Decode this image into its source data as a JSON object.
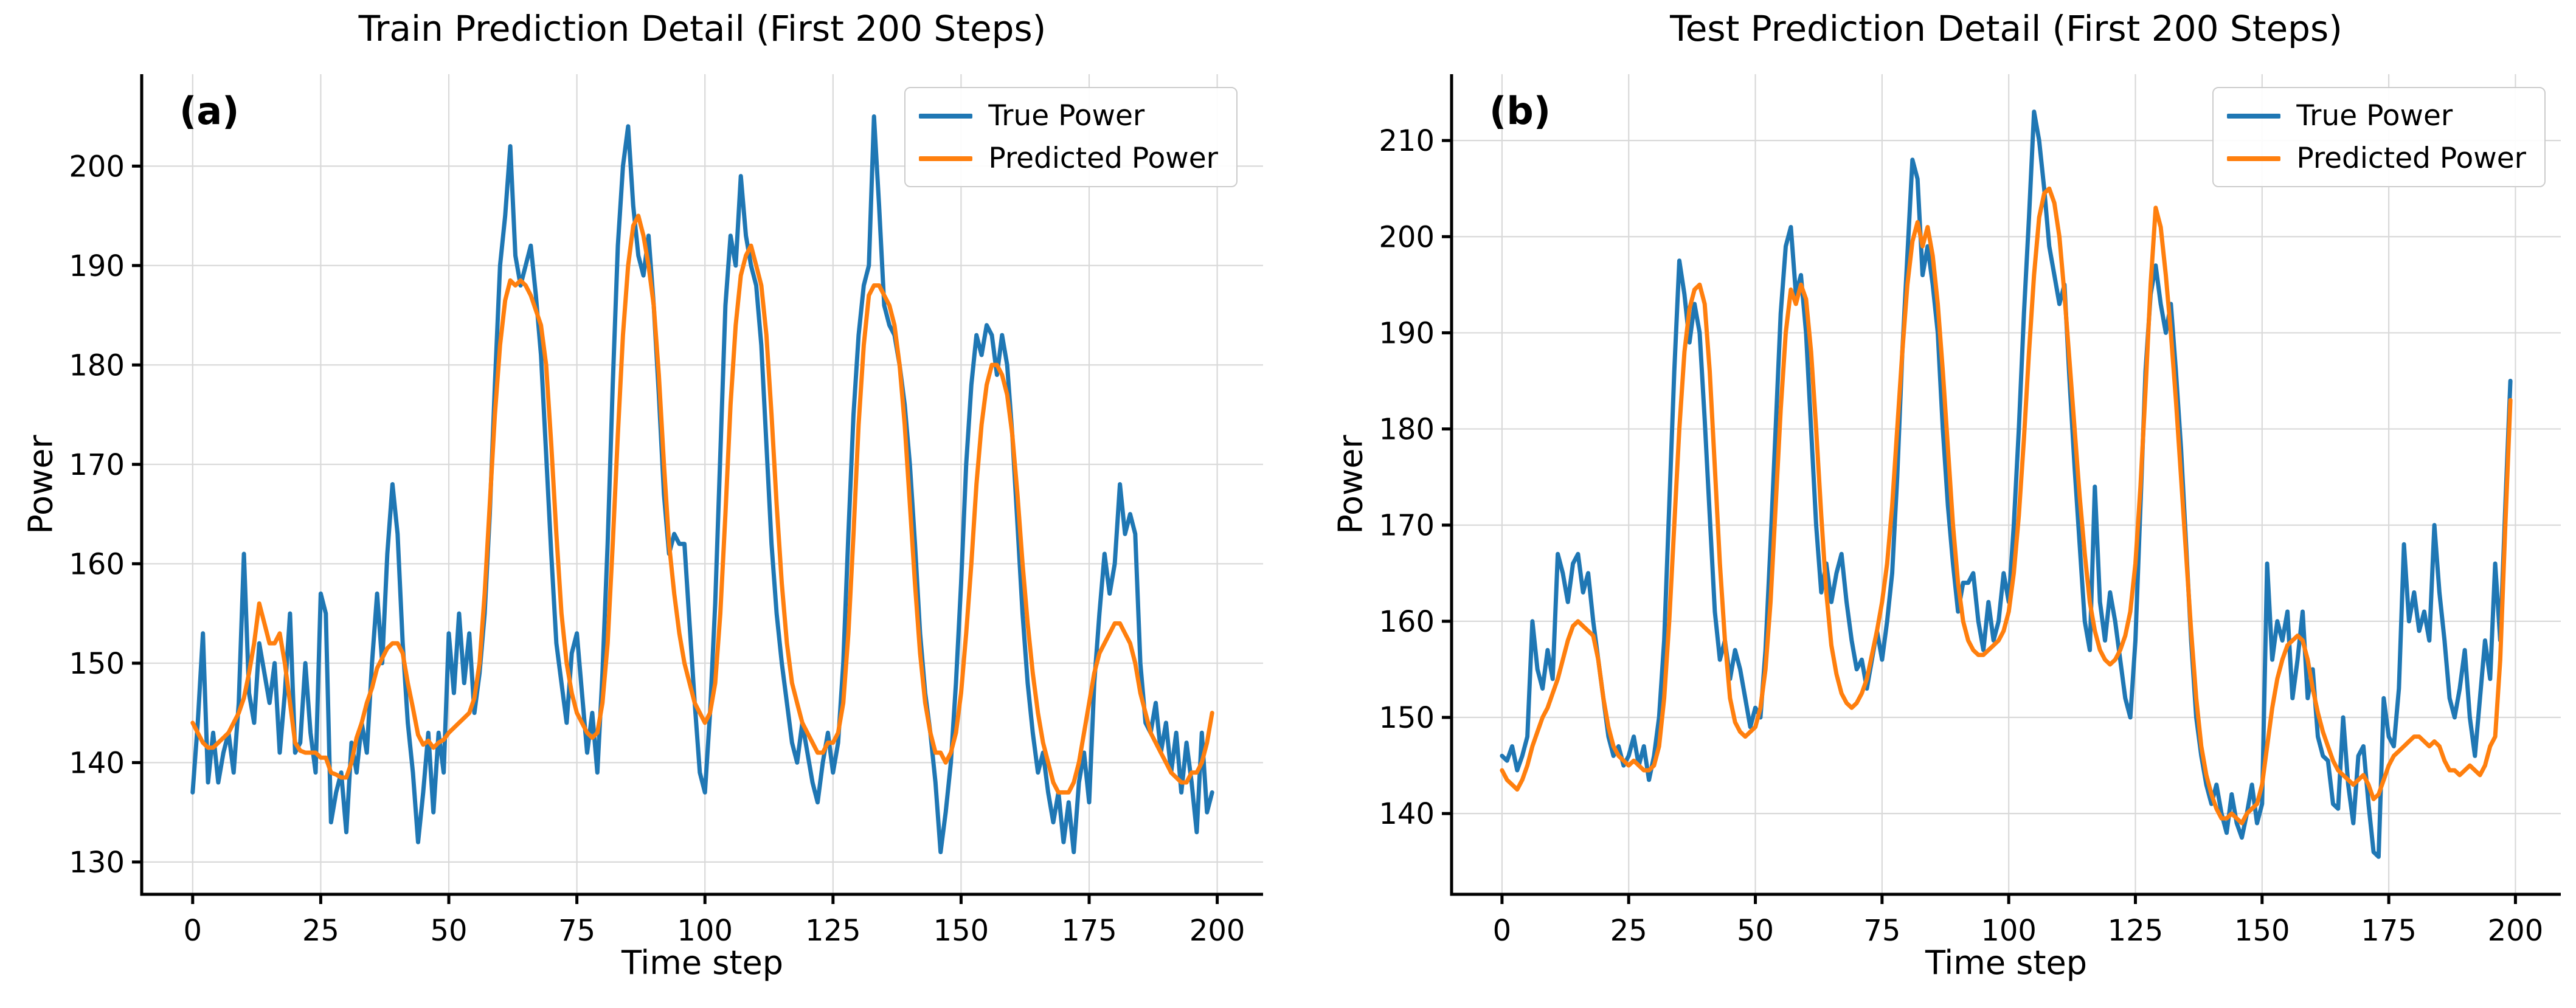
{
  "figure": {
    "background": "#ffffff",
    "grid_color": "#d9d9d9",
    "spine_color": "#000000",
    "accent_colors": {
      "true_power": "#1f77b4",
      "predicted_power": "#ff7f0e"
    }
  },
  "chart_data": [
    {
      "type": "line",
      "title": "Train Prediction Detail (First 200 Steps)",
      "panel_label": "(a)",
      "xlabel": "Time step",
      "ylabel": "Power",
      "x_start": 0,
      "x_step": 1,
      "xlim": [
        -9.95,
        208.95
      ],
      "ylim": [
        126.75,
        209.25
      ],
      "xticks": [
        0,
        25,
        50,
        75,
        100,
        125,
        150,
        175,
        200
      ],
      "yticks": [
        130,
        140,
        150,
        160,
        170,
        180,
        190,
        200
      ],
      "grid": true,
      "legend": {
        "position": "upper right",
        "entries": [
          {
            "label": "True Power",
            "color": "#1f77b4"
          },
          {
            "label": "Predicted Power",
            "color": "#ff7f0e"
          }
        ]
      },
      "series": [
        {
          "name": "True Power",
          "color": "#1f77b4",
          "values": [
            137,
            144,
            153,
            138,
            143,
            138,
            141,
            143,
            139,
            146,
            161,
            147,
            144,
            152,
            149,
            146,
            150,
            141,
            147,
            155,
            141,
            142,
            150,
            143,
            139,
            157,
            155,
            134,
            137,
            139,
            133,
            142,
            139,
            144,
            141,
            150,
            157,
            150,
            161,
            168,
            163,
            152,
            144,
            139,
            132,
            137,
            143,
            135,
            143,
            139,
            153,
            147,
            155,
            148,
            153,
            145,
            149,
            155,
            165,
            178,
            190,
            195,
            202,
            191,
            188,
            190,
            192,
            187,
            181,
            171,
            161,
            152,
            148,
            144,
            151,
            153,
            147,
            141,
            145,
            139,
            149,
            162,
            178,
            192,
            200,
            204,
            196,
            191,
            189,
            193,
            186,
            177,
            167,
            161,
            163,
            162,
            162,
            154,
            146,
            139,
            137,
            145,
            156,
            171,
            186,
            193,
            190,
            199,
            193,
            190,
            188,
            182,
            172,
            162,
            155,
            150,
            146,
            142,
            140,
            144,
            141,
            138,
            136,
            140,
            143,
            139,
            142,
            150,
            163,
            175,
            183,
            188,
            190,
            205,
            196,
            186,
            184,
            183,
            180,
            176,
            170,
            162,
            153,
            147,
            143,
            138,
            131,
            135,
            140,
            148,
            158,
            170,
            178,
            183,
            181,
            184,
            183,
            179,
            183,
            180,
            173,
            164,
            155,
            148,
            143,
            139,
            141,
            137,
            134,
            137,
            132,
            136,
            131,
            138,
            141,
            136,
            148,
            155,
            161,
            157,
            160,
            168,
            163,
            165,
            163,
            150,
            144,
            143,
            146,
            141,
            144,
            139,
            143,
            137,
            142,
            138,
            133,
            143,
            135,
            137
          ]
        },
        {
          "name": "Predicted Power",
          "color": "#ff7f0e",
          "values": [
            144,
            143,
            142,
            141.5,
            141.5,
            142,
            142.5,
            143,
            144,
            145,
            146.5,
            149,
            152,
            156,
            154,
            152,
            152,
            153,
            150,
            146,
            142,
            141.2,
            141,
            141,
            141,
            140.5,
            140.5,
            139,
            138.8,
            138.5,
            138.5,
            140,
            142.5,
            144,
            146,
            147.5,
            149.5,
            150.5,
            151.5,
            152,
            152,
            151,
            148,
            145.5,
            142.8,
            141.8,
            142.2,
            141.5,
            142,
            142.3,
            143,
            143.5,
            144,
            144.5,
            145,
            146.5,
            150,
            157,
            166,
            175,
            182,
            186.5,
            188.5,
            188,
            188.5,
            188,
            187,
            185.5,
            184,
            180,
            172,
            163,
            155,
            150,
            147,
            145,
            144,
            143,
            142.5,
            143,
            146,
            152,
            162,
            173,
            183,
            190,
            194,
            195,
            193,
            190,
            186,
            179,
            170,
            162,
            157,
            153,
            150,
            148,
            146,
            145,
            144,
            145,
            148,
            155,
            165,
            176,
            184,
            189,
            191,
            192,
            190,
            188,
            183,
            175,
            166,
            158,
            152,
            148,
            146,
            144,
            143,
            142,
            141,
            141,
            142,
            142,
            143,
            146,
            153,
            163,
            174,
            182,
            187,
            188,
            188,
            187,
            186,
            184,
            180,
            174,
            166,
            158,
            151,
            146,
            143,
            141,
            141,
            140,
            141,
            143,
            147,
            153,
            160,
            168,
            174,
            178,
            180,
            180,
            179,
            177,
            173,
            167,
            160,
            154,
            149,
            145,
            142,
            140,
            138,
            137,
            137,
            137,
            138,
            140,
            143,
            146,
            149,
            151,
            152,
            153,
            154,
            154,
            153,
            152,
            150,
            147,
            145,
            143,
            142,
            141,
            140,
            139,
            138.5,
            138,
            138,
            139,
            139,
            140,
            142,
            145
          ]
        }
      ]
    },
    {
      "type": "line",
      "title": "Test Prediction Detail (First 200 Steps)",
      "panel_label": "(b)",
      "xlabel": "Time step",
      "ylabel": "Power",
      "x_start": 0,
      "x_step": 1,
      "xlim": [
        -9.95,
        208.95
      ],
      "ylim": [
        131.6,
        216.9
      ],
      "xticks": [
        0,
        25,
        50,
        75,
        100,
        125,
        150,
        175,
        200
      ],
      "yticks": [
        140,
        150,
        160,
        170,
        180,
        190,
        200,
        210
      ],
      "grid": true,
      "legend": {
        "position": "upper right",
        "entries": [
          {
            "label": "True Power",
            "color": "#1f77b4"
          },
          {
            "label": "Predicted Power",
            "color": "#ff7f0e"
          }
        ]
      },
      "series": [
        {
          "name": "True Power",
          "color": "#1f77b4",
          "values": [
            146,
            145.5,
            147,
            144.5,
            146,
            148,
            160,
            155,
            153,
            157,
            154,
            167,
            165,
            162,
            166,
            167,
            163,
            165,
            160,
            156,
            152,
            148,
            146,
            147,
            145,
            146,
            148,
            145,
            147,
            143.5,
            146,
            150,
            158,
            172,
            186,
            197.5,
            194,
            189,
            193,
            190,
            181,
            171,
            161,
            156,
            158,
            154,
            157,
            155,
            152,
            149,
            151,
            150,
            157,
            168,
            180,
            192,
            199,
            201,
            194,
            196,
            190,
            180,
            170,
            163,
            166,
            162,
            165,
            167,
            162,
            158,
            155,
            156,
            153,
            156,
            159,
            156,
            160,
            165,
            175,
            188,
            198,
            208,
            206,
            196,
            199,
            195,
            190,
            180,
            172,
            166,
            161,
            164,
            164,
            165,
            160,
            157,
            162,
            158,
            160,
            165,
            162,
            170,
            180,
            192,
            202,
            213,
            210,
            205,
            199,
            196,
            193,
            195,
            185,
            176,
            168,
            160,
            157,
            174,
            162,
            158,
            163,
            160,
            156,
            152,
            150,
            158,
            172,
            186,
            194,
            197,
            193,
            190,
            193,
            186,
            178,
            168,
            158,
            150,
            146,
            143,
            141,
            143,
            140,
            138,
            142,
            139,
            137.5,
            140,
            143,
            139,
            141,
            166,
            156,
            160,
            158,
            161,
            152,
            156,
            161,
            152,
            155,
            148,
            146,
            145.5,
            141,
            140.5,
            150,
            143,
            139,
            146,
            147,
            141,
            136,
            135.5,
            152,
            148,
            147,
            153,
            168,
            160,
            163,
            159,
            161,
            158,
            170,
            163,
            158,
            152,
            150,
            153,
            157,
            150,
            146,
            152,
            158,
            154,
            166,
            158,
            172,
            185
          ]
        },
        {
          "name": "Predicted Power",
          "color": "#ff7f0e",
          "values": [
            144.5,
            143.5,
            143,
            142.5,
            143.5,
            145,
            147,
            148.5,
            150,
            151,
            152.5,
            154,
            156,
            158,
            159.5,
            160,
            159.5,
            159,
            158.5,
            156,
            152,
            149,
            147,
            146,
            145.5,
            145,
            145.5,
            145,
            144.5,
            144.5,
            145,
            147,
            152,
            160,
            170,
            180,
            188,
            192.5,
            194.5,
            195,
            193,
            186,
            176,
            166,
            158,
            152,
            149.5,
            148.5,
            148,
            148.5,
            149,
            151,
            155,
            162,
            172,
            182,
            190,
            194.5,
            193,
            195,
            193.5,
            188,
            180,
            171,
            163,
            157.5,
            154.5,
            152.5,
            151.5,
            151,
            151.5,
            152.5,
            154,
            156.5,
            159,
            162,
            166,
            172,
            180,
            188,
            195,
            199.5,
            201.5,
            199,
            201,
            198,
            193,
            186,
            178,
            170,
            164,
            160,
            158,
            157,
            156.5,
            156.5,
            157,
            157.5,
            158,
            159,
            161,
            165,
            171,
            179,
            188,
            196,
            202,
            204.5,
            205,
            203.5,
            200,
            194,
            187,
            180,
            173,
            167,
            162,
            159,
            157,
            156,
            155.5,
            156,
            157,
            158.5,
            161,
            166,
            174,
            184,
            195,
            203,
            201,
            196,
            190,
            183,
            175,
            167,
            159,
            152,
            147,
            144,
            142,
            140.5,
            139.5,
            139.5,
            140,
            139.5,
            139,
            140,
            140.5,
            141,
            143,
            147,
            151,
            154,
            156,
            157.5,
            158,
            158.5,
            158,
            156,
            153,
            150.5,
            148.5,
            147,
            145.5,
            144.5,
            144,
            143.5,
            143,
            143.5,
            144,
            143,
            141.5,
            142,
            143.5,
            145,
            146,
            146.5,
            147,
            147.5,
            148,
            148,
            147.5,
            147,
            147.5,
            147,
            145.5,
            144.5,
            144.5,
            144,
            144.5,
            145,
            144.5,
            144,
            145,
            147,
            148,
            156,
            170,
            183
          ]
        }
      ]
    }
  ]
}
